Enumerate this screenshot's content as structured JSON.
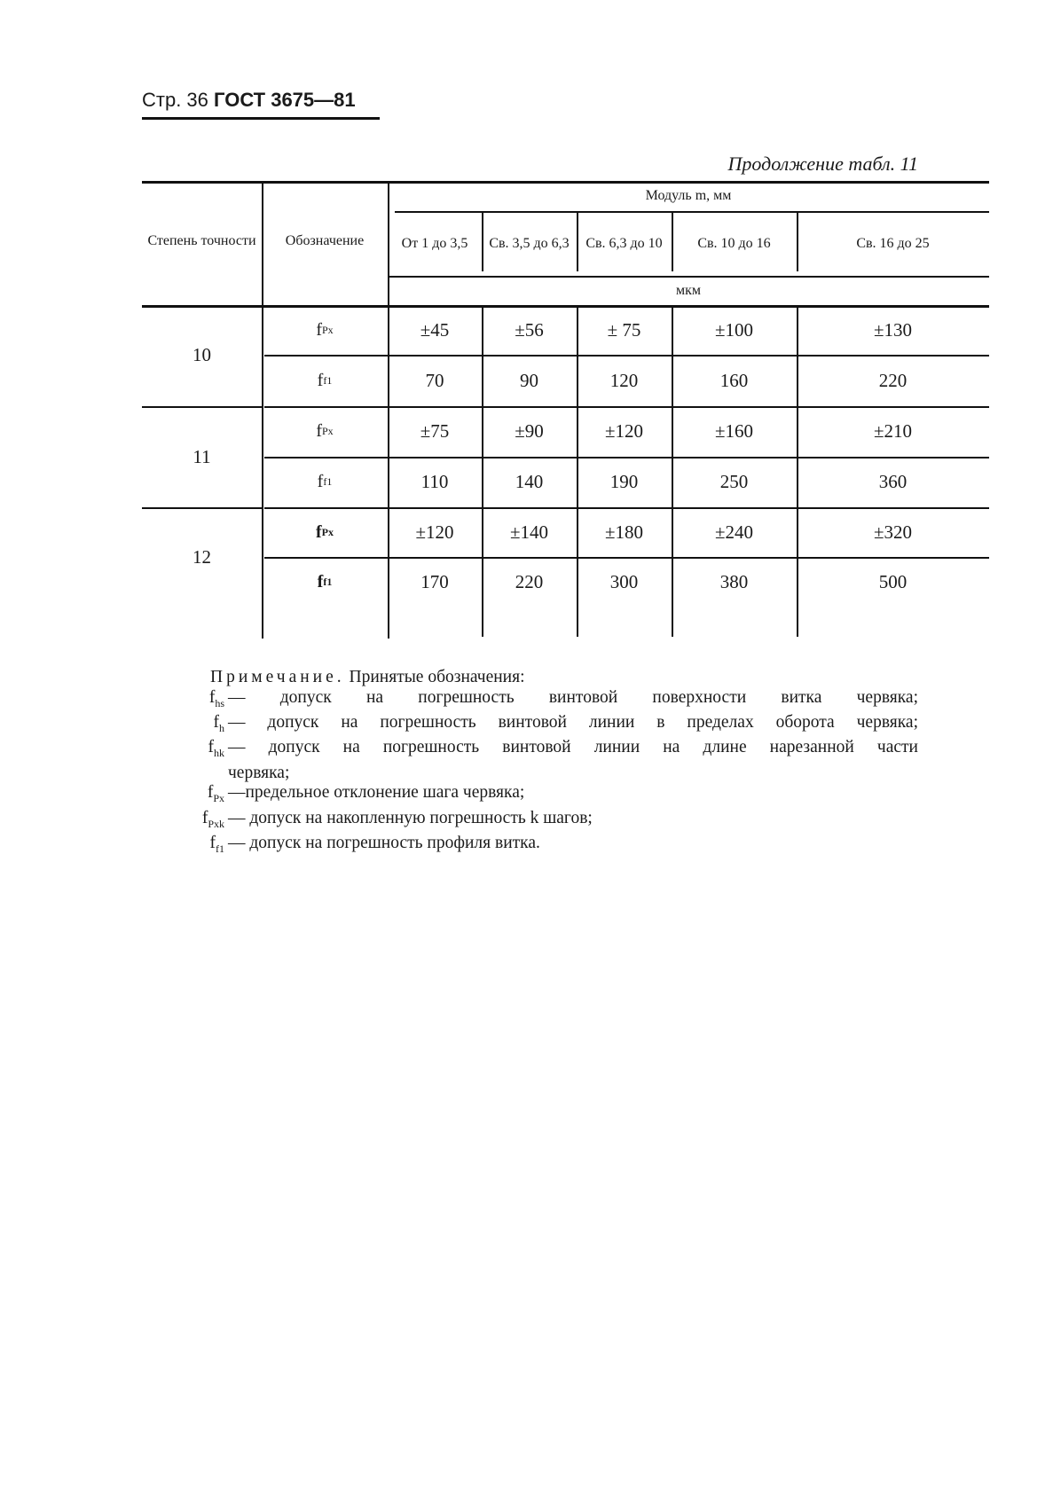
{
  "header": {
    "page": "Стр. 36",
    "standard": "ГОСТ 3675—81"
  },
  "continuation": "Продолжение табл. 11",
  "table": {
    "col_grade": "Степень точности",
    "col_symbol": "Обозначение",
    "module_header": "Модуль m, мм",
    "ranges": [
      "От 1 до 3,5",
      "Св. 3,5 до 6,3",
      "Св. 6,3 до 10",
      "Св. 10 до 16",
      "Св. 16 до 25"
    ],
    "unit": "мкм",
    "groups": [
      {
        "grade": "10",
        "rows": [
          {
            "symbol": "f",
            "sub": "Px",
            "values": [
              "±45",
              "±56",
              "± 75",
              "±100",
              "±130"
            ]
          },
          {
            "symbol": "f",
            "sub": "f1",
            "values": [
              "70",
              "90",
              "120",
              "160",
              "220"
            ]
          }
        ]
      },
      {
        "grade": "11",
        "rows": [
          {
            "symbol": "f",
            "sub": "Px",
            "values": [
              "±75",
              "±90",
              "±120",
              "±160",
              "±210"
            ]
          },
          {
            "symbol": "f",
            "sub": "f1",
            "values": [
              "110",
              "140",
              "190",
              "250",
              "360"
            ]
          }
        ]
      },
      {
        "grade": "12",
        "rows": [
          {
            "symbol": "f",
            "sub": "Px",
            "values": [
              "±120",
              "±140",
              "±180",
              "±240",
              "±320"
            ]
          },
          {
            "symbol": "f",
            "sub": "f1",
            "values": [
              "170",
              "220",
              "300",
              "380",
              "500"
            ]
          }
        ]
      }
    ]
  },
  "note": {
    "title": "Примечание.",
    "intro": "Принятые обозначения:",
    "items": [
      {
        "symbol": "f",
        "sub": "hs",
        "text": "— допуск на погрешность винтовой поверхности витка червяка;"
      },
      {
        "symbol": "f",
        "sub": "h",
        "text": "— допуск на погрешность винтовой линии в пределах оборота червяка;"
      },
      {
        "symbol": "f",
        "sub": "hk",
        "text": "— допуск на погрешность винтовой линии на длине нарезанной части",
        "cont": "червяка;"
      },
      {
        "symbol": "f",
        "sub": "Px",
        "text": "—предельное отклонение шага червяка;"
      },
      {
        "symbol": "f",
        "sub": "Pxk",
        "text": "— допуск на накопленную погрешность k шагов;"
      },
      {
        "symbol": "f",
        "sub": "f1",
        "text": "— допуск на погрешность профиля витка."
      }
    ]
  }
}
